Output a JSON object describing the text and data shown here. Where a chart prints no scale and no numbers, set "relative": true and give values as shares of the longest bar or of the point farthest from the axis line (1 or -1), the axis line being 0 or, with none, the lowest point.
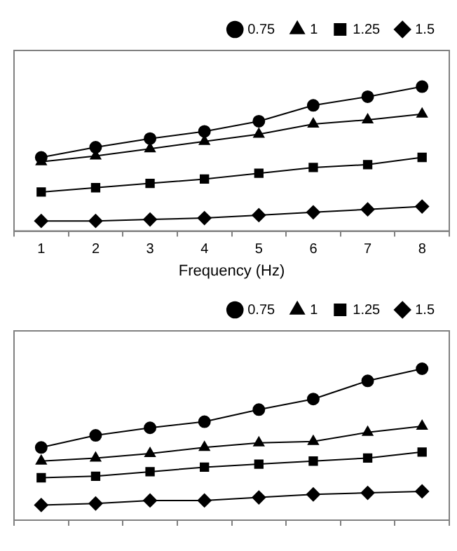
{
  "chart_data": [
    {
      "type": "line",
      "relative": true,
      "xlabel": "Frequency (Hz)",
      "categories": [
        "1",
        "2",
        "3",
        "4",
        "5",
        "6",
        "7",
        "8"
      ],
      "legend": "top right",
      "grid": false,
      "series": [
        {
          "name": "0.75",
          "color": "#000000",
          "marker": "circle",
          "values": [
            0.51,
            0.58,
            0.64,
            0.69,
            0.76,
            0.87,
            0.93,
            1
          ]
        },
        {
          "name": "1",
          "color": "#000000",
          "marker": "triangle",
          "values": [
            0.48,
            0.52,
            0.57,
            0.62,
            0.67,
            0.74,
            0.77,
            0.81
          ]
        },
        {
          "name": "1.25",
          "color": "#000000",
          "marker": "square",
          "values": [
            0.27,
            0.3,
            0.33,
            0.36,
            0.4,
            0.44,
            0.46,
            0.51
          ]
        },
        {
          "name": "1.5",
          "color": "#000000",
          "marker": "diamond",
          "values": [
            0.07,
            0.07,
            0.08,
            0.09,
            0.11,
            0.13,
            0.15,
            0.17
          ]
        }
      ]
    },
    {
      "type": "line",
      "relative": true,
      "categories": [
        null,
        null,
        null,
        null,
        null,
        null,
        null,
        null
      ],
      "legend": "top right",
      "grid": false,
      "series": [
        {
          "name": "0.75",
          "color": "#000000",
          "marker": "circle",
          "values": [
            0.48,
            0.56,
            0.61,
            0.65,
            0.73,
            0.8,
            0.92,
            1
          ]
        },
        {
          "name": "1",
          "color": "#000000",
          "marker": "triangle",
          "values": [
            0.39,
            0.41,
            0.44,
            0.48,
            0.51,
            0.52,
            0.58,
            0.62
          ]
        },
        {
          "name": "1.25",
          "color": "#000000",
          "marker": "square",
          "values": [
            0.28,
            0.29,
            0.32,
            0.35,
            0.37,
            0.39,
            0.41,
            0.45
          ]
        },
        {
          "name": "1.5",
          "color": "#000000",
          "marker": "diamond",
          "values": [
            0.1,
            0.11,
            0.13,
            0.13,
            0.15,
            0.17,
            0.18,
            0.19
          ]
        }
      ]
    }
  ]
}
